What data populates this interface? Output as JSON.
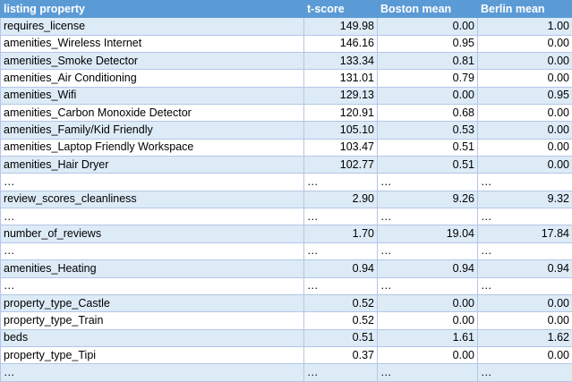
{
  "table": {
    "headers": [
      "listing property",
      "t-score",
      "Boston mean",
      "Berlin mean"
    ],
    "rows": [
      [
        "requires_license",
        "149.98",
        "0.00",
        "1.00"
      ],
      [
        "amenities_Wireless Internet",
        "146.16",
        "0.95",
        "0.00"
      ],
      [
        "amenities_Smoke Detector",
        "133.34",
        "0.81",
        "0.00"
      ],
      [
        "amenities_Air Conditioning",
        "131.01",
        "0.79",
        "0.00"
      ],
      [
        "amenities_Wifi",
        "129.13",
        "0.00",
        "0.95"
      ],
      [
        "amenities_Carbon Monoxide Detector",
        "120.91",
        "0.68",
        "0.00"
      ],
      [
        "amenities_Family/Kid Friendly",
        "105.10",
        "0.53",
        "0.00"
      ],
      [
        "amenities_Laptop Friendly Workspace",
        "103.47",
        "0.51",
        "0.00"
      ],
      [
        "amenities_Hair Dryer",
        "102.77",
        "0.51",
        "0.00"
      ],
      [
        "…",
        "…",
        "…",
        "…"
      ],
      [
        "review_scores_cleanliness",
        "2.90",
        "9.26",
        "9.32"
      ],
      [
        "…",
        "…",
        "…",
        "…"
      ],
      [
        "number_of_reviews",
        "1.70",
        "19.04",
        "17.84"
      ],
      [
        "…",
        "…",
        "…",
        "…"
      ],
      [
        "amenities_Heating",
        "0.94",
        "0.94",
        "0.94"
      ],
      [
        "…",
        "…",
        "…",
        "…"
      ],
      [
        "property_type_Castle",
        "0.52",
        "0.00",
        "0.00"
      ],
      [
        "property_type_Train",
        "0.52",
        "0.00",
        "0.00"
      ],
      [
        "beds",
        "0.51",
        "1.61",
        "1.62"
      ],
      [
        "property_type_Tipi",
        "0.37",
        "0.00",
        "0.00"
      ],
      [
        "…",
        "…",
        "…",
        "…"
      ]
    ]
  },
  "colors": {
    "header_bg": "#5b9bd5",
    "band_bg": "#ddebf7",
    "border": "#b4c6e7"
  }
}
